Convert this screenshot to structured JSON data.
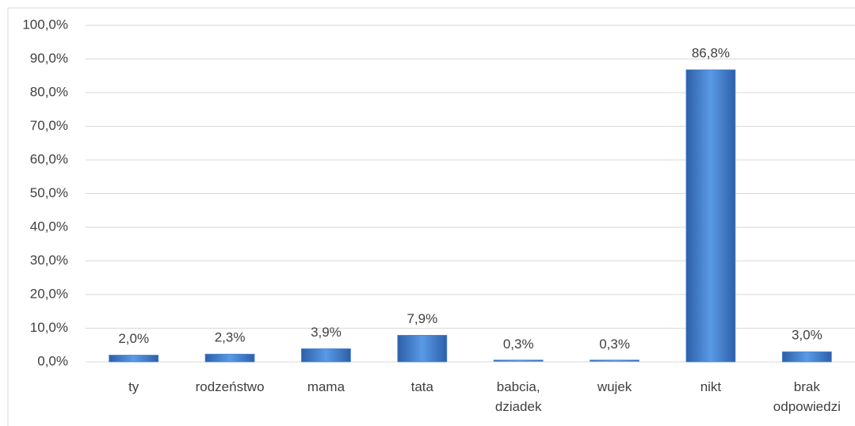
{
  "chart_data": {
    "type": "bar",
    "categories": [
      "ty",
      "rodzeństwo",
      "mama",
      "tata",
      "babcia, dziadek",
      "wujek",
      "nikt",
      "brak odpowiedzi"
    ],
    "values": [
      2.0,
      2.3,
      3.9,
      7.9,
      0.3,
      0.3,
      86.8,
      3.0
    ],
    "value_labels": [
      "2,0%",
      "2,3%",
      "3,9%",
      "7,9%",
      "0,3%",
      "0,3%",
      "86,8%",
      "3,0%"
    ],
    "color": "#4a86d8",
    "ylim": [
      0,
      100
    ],
    "yticks": [
      {
        "value": 0,
        "label": "0,0%"
      },
      {
        "value": 10,
        "label": "10,0%"
      },
      {
        "value": 20,
        "label": "20,0%"
      },
      {
        "value": 30,
        "label": "30,0%"
      },
      {
        "value": 40,
        "label": "40,0%"
      },
      {
        "value": 50,
        "label": "50,0%"
      },
      {
        "value": 60,
        "label": "60,0%"
      },
      {
        "value": 70,
        "label": "70,0%"
      },
      {
        "value": 80,
        "label": "80,0%"
      },
      {
        "value": 90,
        "label": "90,0%"
      },
      {
        "value": 100,
        "label": "100,0%"
      }
    ],
    "grid": true
  }
}
